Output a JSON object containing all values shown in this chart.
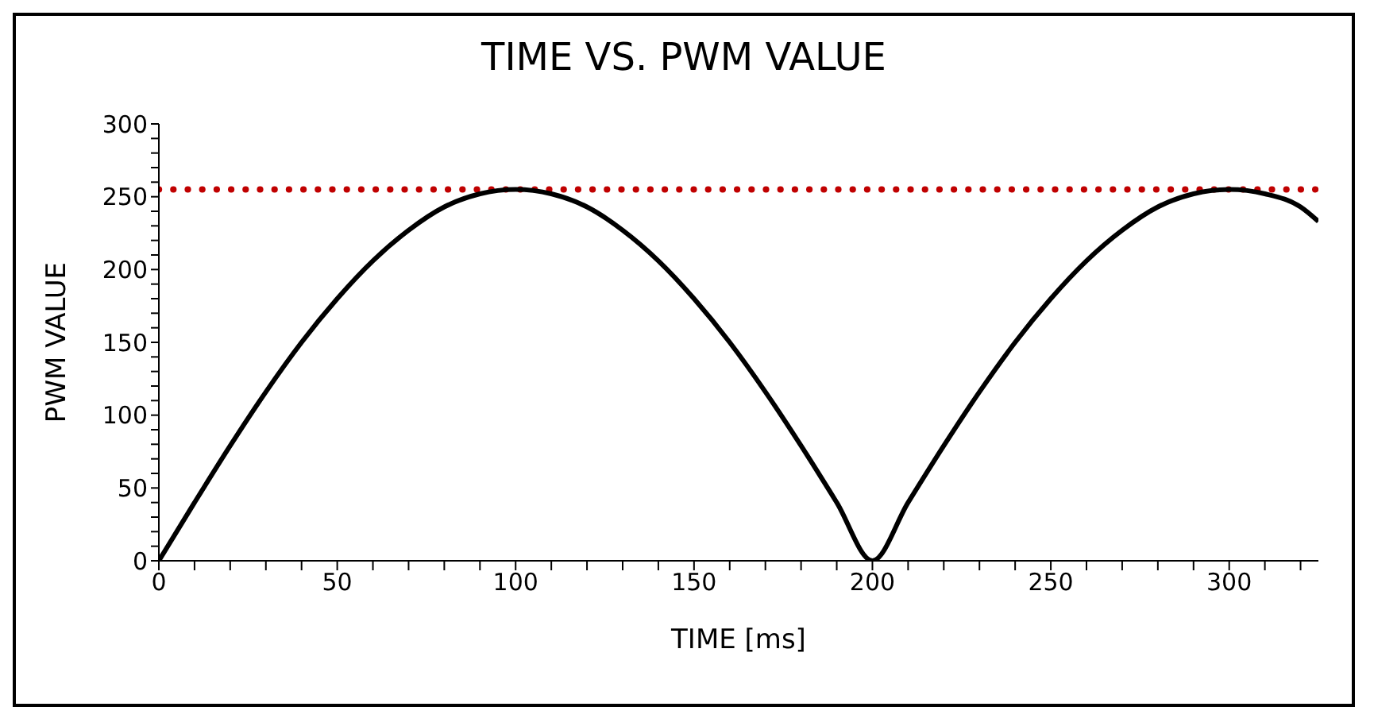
{
  "chart_data": {
    "type": "line",
    "title": "TIME VS. PWM VALUE",
    "xlabel": "TIME [ms]",
    "ylabel": "PWM VALUE",
    "x": [
      0,
      10,
      20,
      30,
      40,
      50,
      60,
      70,
      80,
      90,
      100,
      110,
      120,
      130,
      140,
      150,
      160,
      170,
      180,
      190,
      200,
      210,
      220,
      230,
      240,
      250,
      260,
      270,
      280,
      290,
      300,
      310,
      320,
      325
    ],
    "series": [
      {
        "color": "#000000",
        "values": [
          0,
          40,
          79,
          116,
          150,
          180,
          206,
          227,
          243,
          252,
          255,
          252,
          243,
          227,
          206,
          180,
          150,
          116,
          79,
          40,
          0,
          40,
          79,
          116,
          150,
          180,
          206,
          227,
          243,
          252,
          255,
          252,
          243,
          233
        ]
      }
    ],
    "xlim": [
      0,
      325
    ],
    "ylim": [
      0,
      300
    ],
    "xticks": [
      0,
      {
        "value": 10,
        "label": null
      },
      {
        "value": 20,
        "label": null
      },
      {
        "value": 30,
        "label": null
      },
      {
        "value": 40,
        "label": null
      },
      50,
      {
        "value": 60,
        "label": null
      },
      {
        "value": 70,
        "label": null
      },
      {
        "value": 80,
        "label": null
      },
      {
        "value": 90,
        "label": null
      },
      100,
      {
        "value": 110,
        "label": null
      },
      {
        "value": 120,
        "label": null
      },
      {
        "value": 130,
        "label": null
      },
      {
        "value": 140,
        "label": null
      },
      150,
      {
        "value": 160,
        "label": null
      },
      {
        "value": 170,
        "label": null
      },
      {
        "value": 180,
        "label": null
      },
      {
        "value": 190,
        "label": null
      },
      200,
      {
        "value": 210,
        "label": null
      },
      {
        "value": 220,
        "label": null
      },
      {
        "value": 230,
        "label": null
      },
      {
        "value": 240,
        "label": null
      },
      250,
      {
        "value": 260,
        "label": null
      },
      {
        "value": 270,
        "label": null
      },
      {
        "value": 280,
        "label": null
      },
      {
        "value": 290,
        "label": null
      },
      300,
      {
        "value": 310,
        "label": null
      },
      {
        "value": 320,
        "label": null
      }
    ],
    "yticks": [
      0,
      {
        "value": 10,
        "label": null
      },
      {
        "value": 20,
        "label": null
      },
      {
        "value": 30,
        "label": null
      },
      {
        "value": 40,
        "label": null
      },
      50,
      {
        "value": 60,
        "label": null
      },
      {
        "value": 70,
        "label": null
      },
      {
        "value": 80,
        "label": null
      },
      {
        "value": 90,
        "label": null
      },
      100,
      {
        "value": 110,
        "label": null
      },
      {
        "value": 120,
        "label": null
      },
      {
        "value": 130,
        "label": null
      },
      {
        "value": 140,
        "label": null
      },
      150,
      {
        "value": 160,
        "label": null
      },
      {
        "value": 170,
        "label": null
      },
      {
        "value": 180,
        "label": null
      },
      {
        "value": 190,
        "label": null
      },
      200,
      {
        "value": 210,
        "label": null
      },
      {
        "value": 220,
        "label": null
      },
      {
        "value": 230,
        "label": null
      },
      {
        "value": 240,
        "label": null
      },
      250,
      {
        "value": 260,
        "label": null
      },
      {
        "value": 270,
        "label": null
      },
      {
        "value": 280,
        "label": null
      },
      {
        "value": 290,
        "label": null
      },
      300
    ],
    "ref_lines": [
      {
        "axis": "y",
        "value": 255,
        "color": "#c00000",
        "line_style": "dotted"
      }
    ],
    "grid": false,
    "legend": false,
    "marker": "none",
    "line_style": "solid"
  }
}
